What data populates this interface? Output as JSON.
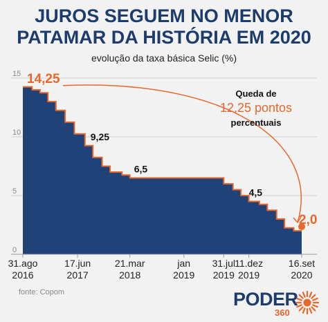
{
  "header": {
    "title_line1": "JUROS SEGUEM NO MENOR",
    "title_line2": "PATAMAR DA HISTÓRIA EM 2020",
    "subtitle": "evolução da taxa básica Selic (%)"
  },
  "source": "fonte: Copom",
  "brand": {
    "word": "PODER",
    "number": "360",
    "icon": "sun-icon"
  },
  "colors": {
    "title": "#1d3c6e",
    "area": "#1f4279",
    "accent": "#e8672a",
    "background": "#f2f2f2"
  },
  "chart_data": {
    "type": "area",
    "step": true,
    "y_ticks": [
      "0",
      "5",
      "10",
      "15"
    ],
    "ylim": [
      0,
      15
    ],
    "xlim": [
      "2016-08-31",
      "2020-09-16"
    ],
    "grid": true,
    "x_labels": [
      {
        "date": "2016-08-31",
        "line1": "31.ago",
        "line2": "2016"
      },
      {
        "date": "2017-06-17",
        "line1": "17.jun",
        "line2": "2017"
      },
      {
        "date": "2018-03-21",
        "line1": "21.mar",
        "line2": "2018"
      },
      {
        "date": "2019-01-01",
        "line1": "jan",
        "line2": "2019"
      },
      {
        "date": "2019-07-31",
        "line1": "31.jul",
        "line2": "2019"
      },
      {
        "date": "2019-12-11",
        "line1": "11.dez",
        "line2": "2019"
      },
      {
        "date": "2020-09-16",
        "line1": "16.set",
        "line2": "2020"
      }
    ],
    "points": [
      {
        "x": "2016-08-31",
        "y": 14.25
      },
      {
        "x": "2016-10-19",
        "y": 14.0
      },
      {
        "x": "2016-11-30",
        "y": 13.75
      },
      {
        "x": "2017-01-11",
        "y": 13.0
      },
      {
        "x": "2017-02-22",
        "y": 12.25
      },
      {
        "x": "2017-04-12",
        "y": 11.25
      },
      {
        "x": "2017-05-31",
        "y": 10.25
      },
      {
        "x": "2017-07-26",
        "y": 9.25
      },
      {
        "x": "2017-09-06",
        "y": 8.25
      },
      {
        "x": "2017-10-25",
        "y": 7.5
      },
      {
        "x": "2017-12-06",
        "y": 7.0
      },
      {
        "x": "2018-02-07",
        "y": 6.75
      },
      {
        "x": "2018-03-21",
        "y": 6.5
      },
      {
        "x": "2019-07-31",
        "y": 6.0
      },
      {
        "x": "2019-09-18",
        "y": 5.5
      },
      {
        "x": "2019-10-30",
        "y": 5.0
      },
      {
        "x": "2019-12-11",
        "y": 4.5
      },
      {
        "x": "2020-02-05",
        "y": 4.25
      },
      {
        "x": "2020-03-18",
        "y": 3.75
      },
      {
        "x": "2020-05-06",
        "y": 3.0
      },
      {
        "x": "2020-06-17",
        "y": 2.25
      },
      {
        "x": "2020-08-05",
        "y": 2.0
      },
      {
        "x": "2020-09-16",
        "y": 2.0
      }
    ],
    "value_labels": [
      {
        "x": "2016-08-31",
        "y": 14.25,
        "text": "14,25",
        "highlight": true
      },
      {
        "x": "2017-07-26",
        "y": 9.25,
        "text": "9,25",
        "highlight": false
      },
      {
        "x": "2018-03-21",
        "y": 6.5,
        "text": "6,5",
        "highlight": false
      },
      {
        "x": "2019-12-11",
        "y": 4.5,
        "text": "4,5",
        "highlight": false
      },
      {
        "x": "2020-09-16",
        "y": 2.0,
        "text": "2,0",
        "highlight": true
      }
    ],
    "annotation": {
      "line1": "Queda de",
      "line2": "12,25 pontos",
      "line3": "percentuais"
    }
  }
}
